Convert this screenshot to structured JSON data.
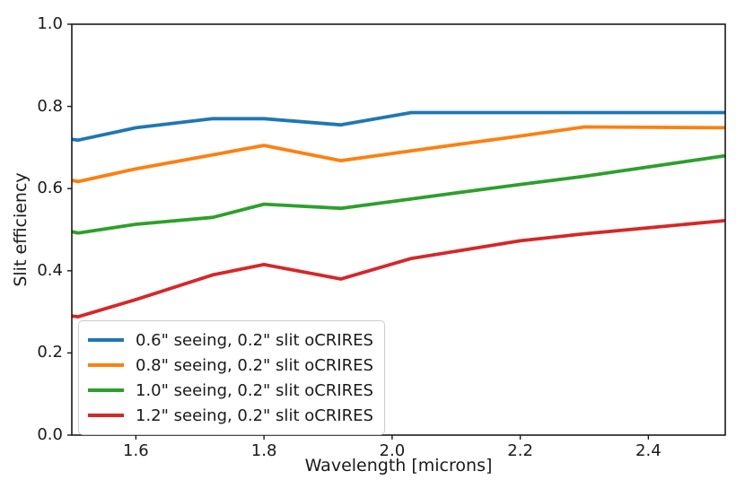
{
  "figure": {
    "background": "#ffffff",
    "axis_color": "#1a1a1a"
  },
  "chart_data": {
    "type": "line",
    "title": "",
    "xlabel": "Wavelength [microns]",
    "ylabel": "Slit efficiency",
    "xlim": [
      1.5,
      2.52
    ],
    "ylim": [
      0.0,
      1.0
    ],
    "xticks": [
      1.6,
      1.8,
      2.0,
      2.2,
      2.4
    ],
    "xtick_labels": [
      "1.6",
      "1.8",
      "2.0",
      "2.2",
      "2.4"
    ],
    "yticks": [
      0.0,
      0.2,
      0.4,
      0.6,
      0.8,
      1.0
    ],
    "ytick_labels": [
      "0.0",
      "0.2",
      "0.4",
      "0.6",
      "0.8",
      "1.0"
    ],
    "grid": false,
    "legend_position": "lower-left",
    "x": [
      1.5,
      1.51,
      1.6,
      1.72,
      1.8,
      1.92,
      2.03,
      2.2,
      2.3,
      2.52
    ],
    "series": [
      {
        "name": "0.6\" seeing, 0.2\" slit oCRIRES",
        "color": "#1f77b4",
        "values": [
          0.72,
          0.718,
          0.748,
          0.77,
          0.77,
          0.755,
          0.785,
          0.785,
          0.785,
          0.785
        ]
      },
      {
        "name": "0.8\" seeing, 0.2\" slit oCRIRES",
        "color": "#ff7f0e",
        "values": [
          0.62,
          0.617,
          0.648,
          0.682,
          0.705,
          0.668,
          0.692,
          0.728,
          0.75,
          0.748
        ]
      },
      {
        "name": "1.0\" seeing, 0.2\" slit oCRIRES",
        "color": "#2ca02c",
        "values": [
          0.495,
          0.492,
          0.513,
          0.53,
          0.562,
          0.552,
          0.575,
          0.61,
          0.63,
          0.68
        ]
      },
      {
        "name": "1.2\" seeing, 0.2\" slit oCRIRES",
        "color": "#d62728",
        "values": [
          0.29,
          0.288,
          0.33,
          0.39,
          0.415,
          0.38,
          0.43,
          0.473,
          0.49,
          0.522
        ]
      }
    ]
  }
}
